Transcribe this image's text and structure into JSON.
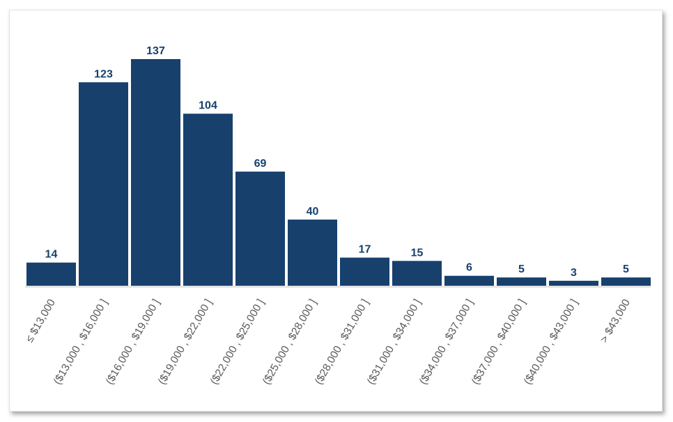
{
  "chart_data": {
    "type": "bar",
    "categories": [
      "≤ $13,000",
      "($13,000 , $16,000 ]",
      "($16,000 , $19,000 ]",
      "($19,000 , $22,000 ]",
      "($22,000 , $25,000 ]",
      "($25,000 , $28,000 ]",
      "($28,000 , $31,000 ]",
      "($31,000 , $34,000 ]",
      "($34,000 , $37,000 ]",
      "($37,000 , $40,000 ]",
      "($40,000 , $43,000 ]",
      "> $43,000"
    ],
    "values": [
      14,
      123,
      137,
      104,
      69,
      40,
      17,
      15,
      6,
      5,
      3,
      5
    ],
    "data_labels": [
      "14",
      "123",
      "137",
      "104",
      "69",
      "40",
      "17",
      "15",
      "6",
      "5",
      "3",
      "5"
    ],
    "title": "",
    "xlabel": "",
    "ylabel": "",
    "ylim": [
      0,
      137
    ],
    "grid": false,
    "legend": "none",
    "bar_color": "#17406d",
    "label_color": "#17406d",
    "tick_label_color": "#5a5a5a"
  }
}
